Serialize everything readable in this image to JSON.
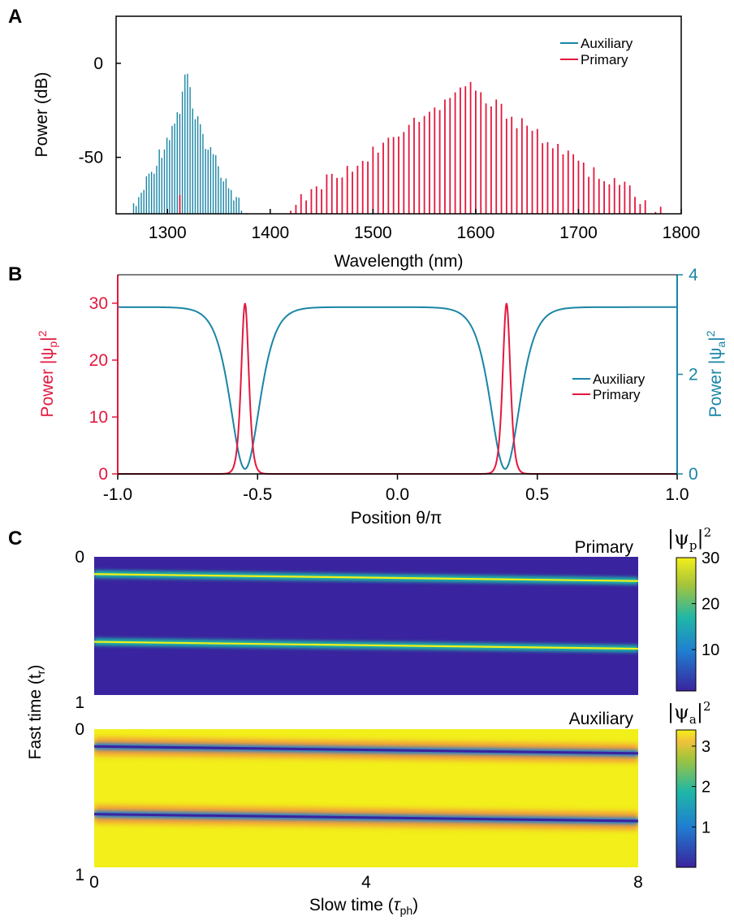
{
  "panels": {
    "a": "A",
    "b": "B",
    "c": "C"
  },
  "colors": {
    "auxiliary": "#1a85a6",
    "primary": "#e3183e",
    "heat_low": "#3a239e",
    "heat_high": "#f2ef1a"
  },
  "chart_data": [
    {
      "id": "A",
      "type": "bar",
      "xlabel": "Wavelength (nm)",
      "ylabel": "Power (dB)",
      "xlim": [
        1250,
        1800
      ],
      "ylim": [
        -80,
        25
      ],
      "x_ticks": [
        "1300",
        "1400",
        "1500",
        "1600",
        "1700",
        "1800"
      ],
      "y_ticks": [
        "0",
        "-50"
      ],
      "legend": {
        "position": "top-right",
        "entries": [
          "Auxiliary",
          "Primary"
        ]
      },
      "series": [
        {
          "name": "Auxiliary",
          "envelope": [
            [
              1262,
              -80
            ],
            [
              1280,
              -58
            ],
            [
              1300,
              -35
            ],
            [
              1312,
              -20
            ],
            [
              1318,
              4
            ],
            [
              1325,
              -23
            ],
            [
              1340,
              -40
            ],
            [
              1360,
              -60
            ],
            [
              1380,
              -80
            ]
          ],
          "line_spacing_nm": 2.5
        },
        {
          "name": "Primary",
          "envelope": [
            [
              1400,
              -80
            ],
            [
              1420,
              -73
            ],
            [
              1450,
              -60
            ],
            [
              1500,
              -43
            ],
            [
              1550,
              -25
            ],
            [
              1591,
              -7
            ],
            [
              1620,
              -18
            ],
            [
              1650,
              -30
            ],
            [
              1700,
              -50
            ],
            [
              1750,
              -64
            ],
            [
              1790,
              -80
            ]
          ],
          "line_spacing_nm": 5,
          "extra_lines": [
            [
              1312,
              -70
            ]
          ]
        }
      ]
    },
    {
      "id": "B",
      "type": "line",
      "xlabel": "Position θ/π",
      "ylabel_left": "Power |ψp|2",
      "ylabel_right": "Power |ψa|2",
      "xlim": [
        -1.0,
        1.0
      ],
      "ylim_left": [
        0,
        35
      ],
      "ylim_right": [
        0,
        4
      ],
      "x_ticks": [
        "-1.0",
        "-0.5",
        "0.0",
        "0.5",
        "1.0"
      ],
      "y_ticks_left": [
        "0",
        "10",
        "20",
        "30"
      ],
      "y_ticks_right": [
        "0",
        "2",
        "4"
      ],
      "legend": {
        "position": "center-right",
        "entries": [
          "Auxiliary",
          "Primary"
        ]
      },
      "series": [
        {
          "name": "Auxiliary",
          "axis": "right",
          "baseline": 3.35,
          "dips": [
            {
              "center": -0.545,
              "depth": 3.25,
              "width": 0.07
            },
            {
              "center": 0.385,
              "depth": 3.25,
              "width": 0.07
            }
          ]
        },
        {
          "name": "Primary",
          "axis": "left",
          "peaks": [
            {
              "center": -0.545,
              "height": 30,
              "width": 0.018
            },
            {
              "center": 0.39,
              "height": 30,
              "width": 0.018
            }
          ]
        }
      ]
    },
    {
      "id": "C",
      "type": "heatmap",
      "xlabel": "Slow time (τph)",
      "ylabel": "Fast time (tr)",
      "xlim": [
        0,
        8
      ],
      "ylim": [
        0,
        1
      ],
      "x_ticks": [
        "0",
        "4",
        "8"
      ],
      "y_ticks": [
        "0",
        "1"
      ],
      "maps": [
        {
          "name": "Primary",
          "colorbar_label": "|ψp|2",
          "colorbar_ticks": [
            "30",
            "20",
            "10"
          ],
          "colorbar_range": [
            1,
            30
          ],
          "background": "low",
          "lines": [
            {
              "fast_time_start": 0.125,
              "fast_time_end": 0.175
            },
            {
              "fast_time_start": 0.615,
              "fast_time_end": 0.665
            }
          ]
        },
        {
          "name": "Auxiliary",
          "colorbar_label": "|ψa|2",
          "colorbar_ticks": [
            "3",
            "2",
            "1"
          ],
          "colorbar_range": [
            0,
            3.4
          ],
          "background": "high",
          "lines": [
            {
              "fast_time_start": 0.125,
              "fast_time_end": 0.175
            },
            {
              "fast_time_start": 0.615,
              "fast_time_end": 0.665
            }
          ]
        }
      ]
    }
  ]
}
